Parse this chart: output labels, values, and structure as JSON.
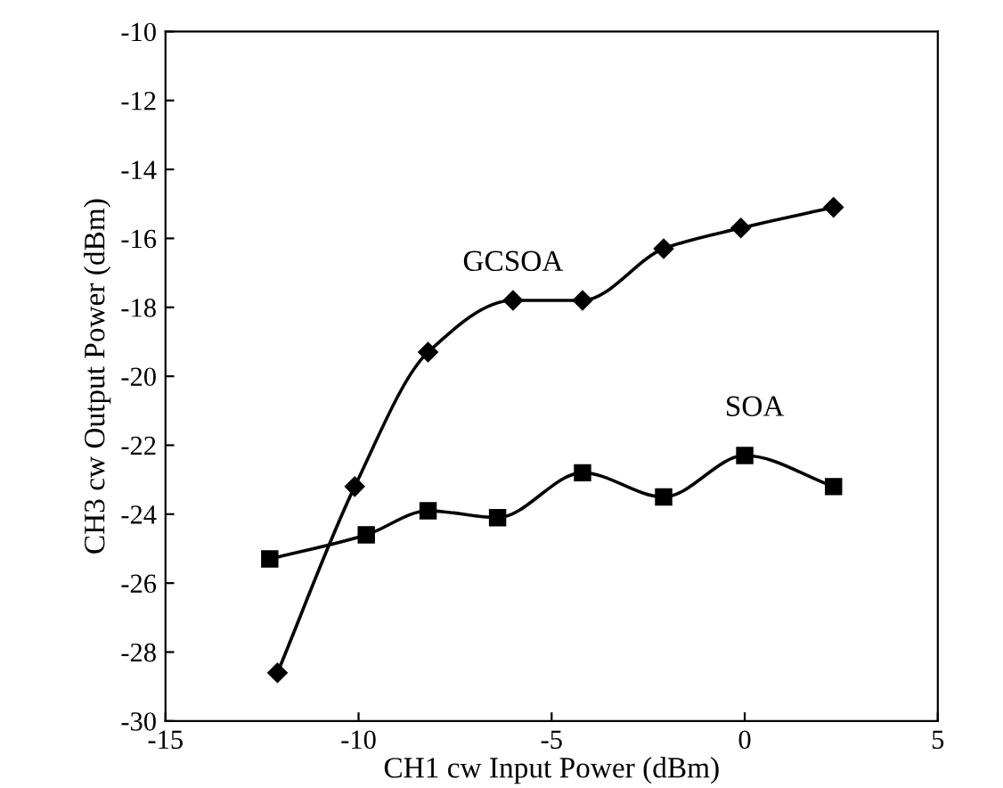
{
  "chart_data": {
    "type": "line",
    "xlabel": "CH1 cw Input Power (dBm)",
    "ylabel": "CH3 cw Output Power (dBm)",
    "xlim": [
      -15,
      5
    ],
    "xticks": [
      -15,
      -10,
      -5,
      0,
      5
    ],
    "ylim": [
      -30,
      -10
    ],
    "yticks": [
      -30,
      -28,
      -26,
      -24,
      -22,
      -20,
      -18,
      -16,
      -14,
      -12,
      -10
    ],
    "grid": false,
    "legend": false,
    "series": [
      {
        "name": "GCSOA",
        "color": "#000000",
        "marker": "diamond",
        "x": [
          -12.1,
          -10.1,
          -8.2,
          -6.0,
          -4.2,
          -2.1,
          -0.1,
          2.3
        ],
        "values": [
          -28.6,
          -23.2,
          -19.3,
          -17.8,
          -17.8,
          -16.3,
          -15.7,
          -15.1
        ]
      },
      {
        "name": "SOA",
        "color": "#000000",
        "marker": "square",
        "x": [
          -12.3,
          -9.8,
          -8.2,
          -6.4,
          -4.2,
          -2.1,
          0,
          2.3
        ],
        "values": [
          -25.3,
          -24.6,
          -23.9,
          -24.1,
          -22.8,
          -23.5,
          -22.3,
          -23.2
        ]
      }
    ]
  }
}
